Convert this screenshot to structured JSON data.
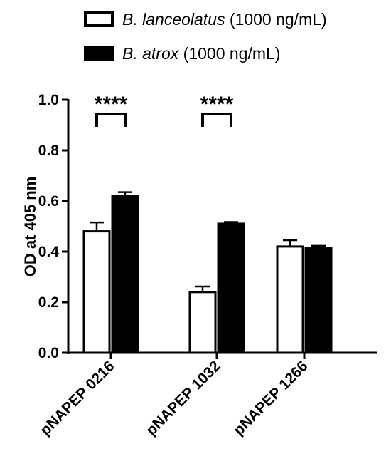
{
  "chart_data": {
    "type": "bar",
    "title": "",
    "xlabel": "",
    "ylabel": "OD at 405 nm",
    "ylim": [
      0,
      1.0
    ],
    "yticks": [
      "0.0",
      "0.2",
      "0.4",
      "0.6",
      "0.8",
      "1.0"
    ],
    "categories": [
      "pNAPEP 0216",
      "pNAPEP 1032",
      "pNAPEP 1266"
    ],
    "series": [
      {
        "name_italic": "B. lanceolatus",
        "name_suffix": " (1000 ng/mL)",
        "fill": "#ffffff",
        "values": [
          0.48,
          0.24,
          0.42
        ],
        "errors": [
          0.035,
          0.022,
          0.025
        ]
      },
      {
        "name_italic": "B. atrox",
        "name_suffix": " (1000 ng/mL)",
        "fill": "#000000",
        "values": [
          0.62,
          0.51,
          0.415
        ],
        "errors": [
          0.015,
          0.007,
          0.008
        ]
      }
    ],
    "significance": [
      {
        "category_index": 0,
        "label": "****"
      },
      {
        "category_index": 1,
        "label": "****"
      }
    ],
    "legend_position": "top",
    "grid": false
  }
}
